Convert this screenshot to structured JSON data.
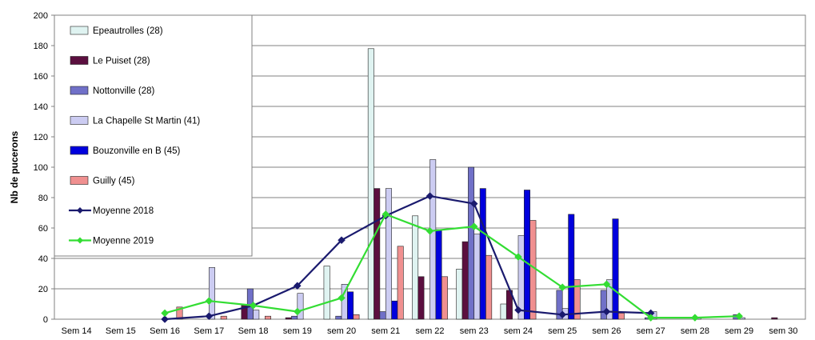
{
  "chart_data": {
    "type": "bar",
    "ylabel": "Nb de pucerons",
    "xlabel": "",
    "title": "",
    "ylim": [
      0,
      200
    ],
    "yticks": [
      0,
      20,
      40,
      60,
      80,
      100,
      120,
      140,
      160,
      180,
      200
    ],
    "grid": "horizontal",
    "legend_position": "top-left",
    "categories": [
      "Sem 14",
      "Sem 15",
      "Sem 16",
      "Sem 17",
      "Sem 18",
      "sem 19",
      "sem 20",
      "sem 21",
      "sem 22",
      "sem 23",
      "sem 24",
      "sem 25",
      "sem 26",
      "sem 27",
      "sem 28",
      "sem 29",
      "sem 30"
    ],
    "series": [
      {
        "name": "Epeautrolles (28)",
        "kind": "bar",
        "color": "#dff3f1",
        "values": [
          0,
          0,
          0,
          0,
          0,
          0,
          35,
          178,
          68,
          33,
          10,
          0,
          0,
          0,
          0,
          0,
          0
        ]
      },
      {
        "name": "Le Puiset (28)",
        "kind": "bar",
        "color": "#5b0f3f",
        "values": [
          0,
          0,
          0,
          0,
          9,
          1,
          0,
          86,
          28,
          51,
          19,
          0,
          0,
          0,
          0,
          0,
          1
        ]
      },
      {
        "name": "Nottonville (28)",
        "kind": "bar",
        "color": "#7070c8",
        "values": [
          0,
          0,
          0,
          0,
          20,
          2,
          2,
          5,
          0,
          100,
          0,
          19,
          19,
          1,
          0,
          3,
          0
        ]
      },
      {
        "name": "La Chapelle St Martin (41)",
        "kind": "bar",
        "color": "#ccccf2",
        "values": [
          0,
          0,
          0,
          34,
          6,
          17,
          23,
          86,
          105,
          56,
          55,
          7,
          26,
          5,
          1,
          1,
          0
        ]
      },
      {
        "name": "Bouzonville en B (45)",
        "kind": "bar",
        "color": "#0000dd",
        "values": [
          0,
          0,
          0,
          0,
          0,
          0,
          18,
          12,
          59,
          86,
          85,
          69,
          66,
          0,
          0,
          0,
          0
        ]
      },
      {
        "name": "Guilly (45)",
        "kind": "bar",
        "color": "#f09090",
        "values": [
          0,
          0,
          8,
          2,
          2,
          0,
          3,
          48,
          28,
          42,
          65,
          26,
          4,
          0,
          0,
          0,
          0
        ]
      },
      {
        "name": "Moyenne 2018",
        "kind": "line",
        "color": "#1a1a6e",
        "marker": "diamond",
        "values": [
          null,
          null,
          0,
          2,
          9,
          22,
          52,
          68,
          81,
          76,
          6,
          3,
          5,
          4,
          null,
          null,
          null
        ]
      },
      {
        "name": "Moyenne 2019",
        "kind": "line",
        "color": "#33dd33",
        "marker": "diamond",
        "values": [
          null,
          null,
          4,
          12,
          9,
          5,
          14,
          69,
          58,
          61,
          41,
          21,
          23,
          1,
          1,
          2,
          null
        ]
      }
    ]
  }
}
